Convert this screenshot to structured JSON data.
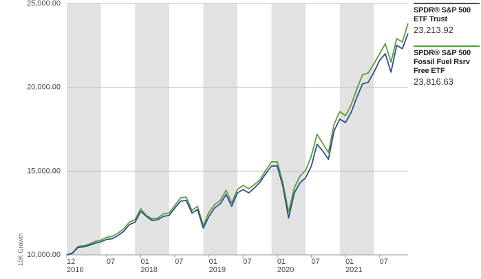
{
  "chart_data": {
    "type": "line",
    "title": "",
    "ylabel": "10K Growth",
    "ylim": [
      10000,
      25000
    ],
    "yticks": [
      10000,
      15000,
      20000,
      25000
    ],
    "ytick_labels": [
      "10,000.00",
      "15,000.00",
      "20,000.00",
      "25,000.00"
    ],
    "xlim": [
      0,
      60
    ],
    "xticks": [
      {
        "month": 0,
        "label": "12",
        "sub": "2016"
      },
      {
        "month": 7,
        "label": "07",
        "sub": ""
      },
      {
        "month": 13,
        "label": "01",
        "sub": "2018"
      },
      {
        "month": 19,
        "label": "07",
        "sub": ""
      },
      {
        "month": 25,
        "label": "01",
        "sub": "2019"
      },
      {
        "month": 31,
        "label": "07",
        "sub": ""
      },
      {
        "month": 37,
        "label": "01",
        "sub": "2020"
      },
      {
        "month": 43,
        "label": "07",
        "sub": ""
      },
      {
        "month": 49,
        "label": "01",
        "sub": "2021"
      },
      {
        "month": 55,
        "label": "07",
        "sub": ""
      }
    ],
    "shaded_bands": [
      [
        0,
        6
      ],
      [
        12,
        18
      ],
      [
        24,
        30
      ],
      [
        36,
        42
      ],
      [
        48,
        54
      ]
    ],
    "grid": true,
    "legend_position": "right",
    "x": [
      0,
      1,
      2,
      3,
      4,
      5,
      6,
      7,
      8,
      9,
      10,
      11,
      12,
      13,
      14,
      15,
      16,
      17,
      18,
      19,
      20,
      21,
      22,
      23,
      24,
      25,
      26,
      27,
      28,
      29,
      30,
      31,
      32,
      33,
      34,
      35,
      36,
      37,
      38,
      39,
      40,
      41,
      42,
      43,
      44,
      45,
      46,
      47,
      48,
      49,
      50,
      51,
      52,
      53,
      54,
      55,
      56,
      57,
      58,
      59,
      60
    ],
    "series": [
      {
        "name": "SPDR® S&P 500 ETF Trust",
        "last_value": "23,213.92",
        "color": "#2a4f8f",
        "values": [
          10000,
          10100,
          10450,
          10480,
          10580,
          10700,
          10780,
          10930,
          10960,
          11150,
          11400,
          11800,
          11950,
          12600,
          12300,
          12050,
          12100,
          12300,
          12350,
          12800,
          13200,
          13250,
          12500,
          12700,
          11600,
          12300,
          12800,
          13050,
          13600,
          12900,
          13700,
          13900,
          13700,
          14000,
          14350,
          14850,
          15300,
          15300,
          14100,
          12200,
          13700,
          14300,
          14600,
          15300,
          16600,
          16200,
          15700,
          17400,
          18100,
          17900,
          18500,
          19400,
          20200,
          20300,
          20900,
          21600,
          22000,
          20900,
          22500,
          22300,
          23214
        ]
      },
      {
        "name": "SPDR® S&P 500 Fossil Fuel Rsrv Free ETF",
        "last_value": "23,816.63",
        "color": "#5e9a3a",
        "values": [
          10000,
          10120,
          10500,
          10550,
          10650,
          10800,
          10880,
          11050,
          11100,
          11300,
          11550,
          11950,
          12100,
          12750,
          12350,
          12150,
          12200,
          12450,
          12500,
          12950,
          13400,
          13450,
          12650,
          12900,
          11750,
          12550,
          13000,
          13250,
          13850,
          13100,
          13900,
          14150,
          13950,
          14200,
          14500,
          15050,
          15550,
          15550,
          14300,
          12550,
          14000,
          14700,
          15050,
          15900,
          17200,
          16650,
          16100,
          17800,
          18550,
          18300,
          18950,
          19900,
          20750,
          20850,
          21400,
          22000,
          22600,
          21500,
          22900,
          22700,
          23817
        ]
      }
    ]
  }
}
